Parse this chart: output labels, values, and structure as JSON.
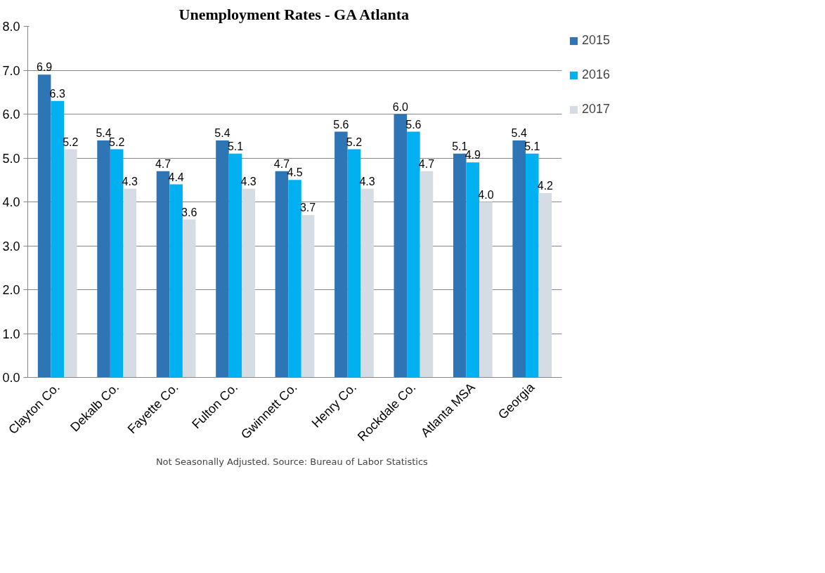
{
  "chart_data": {
    "type": "bar",
    "title": "Unemployment Rates - GA Atlanta",
    "categories": [
      "Clayton Co.",
      "Dekalb Co.",
      "Fayette Co.",
      "Fulton Co.",
      "Gwinnett Co.",
      "Henry Co.",
      "Rockdale Co.",
      "Atlanta MSA",
      "Georgia"
    ],
    "series": [
      {
        "name": "2015",
        "color": "#2e75b6",
        "values": [
          6.9,
          5.4,
          4.7,
          5.4,
          4.7,
          5.6,
          6.0,
          5.1,
          5.4
        ],
        "value_labels": [
          "6.9",
          "5.4",
          "4.7",
          "5.4",
          "4.7",
          "5.6",
          "6.0",
          "5.1",
          "5.4"
        ]
      },
      {
        "name": "2016",
        "color": "#00b0f0",
        "values": [
          6.3,
          5.2,
          4.4,
          5.1,
          4.5,
          5.2,
          5.6,
          4.9,
          5.1
        ],
        "value_labels": [
          "6.3",
          "5.2",
          "4.4",
          "5.1",
          "4.5",
          "5.2",
          "5.6",
          "4.9",
          "5.1"
        ]
      },
      {
        "name": "2017",
        "color": "#d6dce4",
        "values": [
          5.2,
          4.3,
          3.6,
          4.3,
          3.7,
          4.3,
          4.7,
          4.0,
          4.2
        ],
        "value_labels": [
          "5.2",
          "4.3",
          "3.6",
          "4.3",
          "3.7",
          "4.3",
          "4.7",
          "4.0",
          "4.2"
        ]
      }
    ],
    "ylim": [
      0,
      8
    ],
    "yticks": [
      {
        "value": 0,
        "label": "0.0"
      },
      {
        "value": 1,
        "label": "1.0"
      },
      {
        "value": 2,
        "label": "2.0"
      },
      {
        "value": 3,
        "label": "3.0"
      },
      {
        "value": 4,
        "label": "4.0"
      },
      {
        "value": 5,
        "label": "5.0"
      },
      {
        "value": 6,
        "label": "6.0"
      },
      {
        "value": 7,
        "label": "7.0"
      },
      {
        "value": 8,
        "label": "8.0"
      }
    ],
    "grid": "y",
    "legend": "right",
    "annotations": [
      "Not Seasonally Adjusted.   Source: Bureau of Labor Statistics"
    ]
  }
}
